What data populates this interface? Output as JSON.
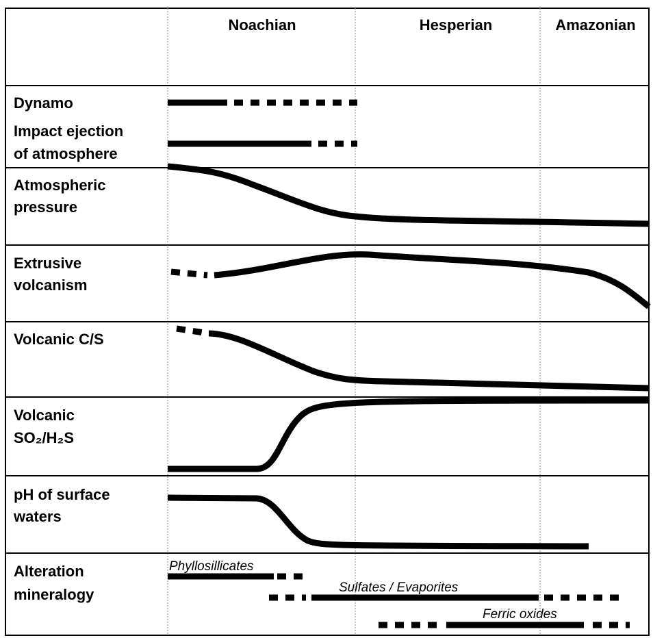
{
  "columns": [
    "Noachian",
    "Hesperian",
    "Amazonian"
  ],
  "rows": [
    {
      "label": [
        "Dynamo"
      ]
    },
    {
      "label": [
        "Impact ejection",
        "of atmosphere"
      ]
    },
    {
      "label": [
        "Atmospheric",
        "pressure"
      ]
    },
    {
      "label": [
        "Extrusive",
        "volcanism"
      ]
    },
    {
      "label": [
        "Volcanic C/S"
      ]
    },
    {
      "label": [
        "Volcanic",
        "SO₂/H₂S"
      ]
    },
    {
      "label": [
        "pH of surface",
        "waters"
      ]
    },
    {
      "label": [
        "Alteration",
        "mineralogy"
      ]
    }
  ],
  "minerals": [
    "Phyllosillicates",
    "Sulfates / Evaporites",
    "Ferric oxides"
  ]
}
